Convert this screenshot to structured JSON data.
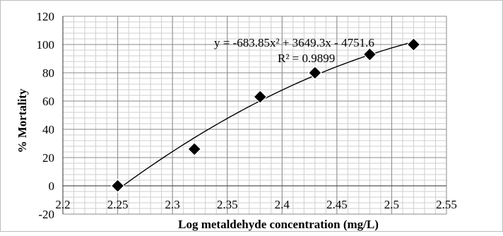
{
  "chart_data": {
    "type": "scatter",
    "title": "",
    "xlabel": "Log metaldehyde concentration (mg/L)",
    "ylabel": "% Mortality",
    "xlim": [
      2.2,
      2.55
    ],
    "ylim": [
      -20,
      120
    ],
    "x_ticks": [
      "2.2",
      "2.25",
      "2.3",
      "2.35",
      "2.4",
      "2.45",
      "2.5",
      "2.55"
    ],
    "y_ticks": [
      "-20",
      "0",
      "20",
      "40",
      "60",
      "80",
      "100",
      "120"
    ],
    "grid": true,
    "series": [
      {
        "marker": "diamond",
        "color": "#000000",
        "x": [
          2.25,
          2.32,
          2.38,
          2.43,
          2.48,
          2.52
        ],
        "y": [
          0,
          26,
          63,
          80,
          93,
          100
        ]
      }
    ],
    "trendline": {
      "type": "polynomial",
      "coefficients": [
        -683.85,
        3649.3,
        -4751.6
      ],
      "x_range": [
        2.25,
        2.52
      ],
      "equation_text": "y = -683.85x² + 3649.3x - 4751.6",
      "r2_text": "R² = 0.9899"
    }
  }
}
